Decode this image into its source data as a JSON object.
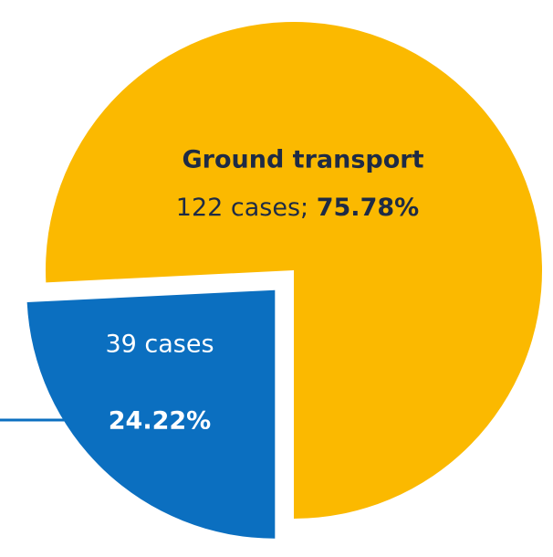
{
  "chart_data": {
    "type": "pie",
    "categories": [
      "Ground transport",
      null
    ],
    "values": [
      75.78,
      24.22
    ],
    "value_labels": [
      "75.78%",
      "24.22%"
    ],
    "case_labels": [
      "122 cases;",
      "39 cases"
    ],
    "colors": [
      "#FBB900",
      "#0B6FC0"
    ]
  }
}
